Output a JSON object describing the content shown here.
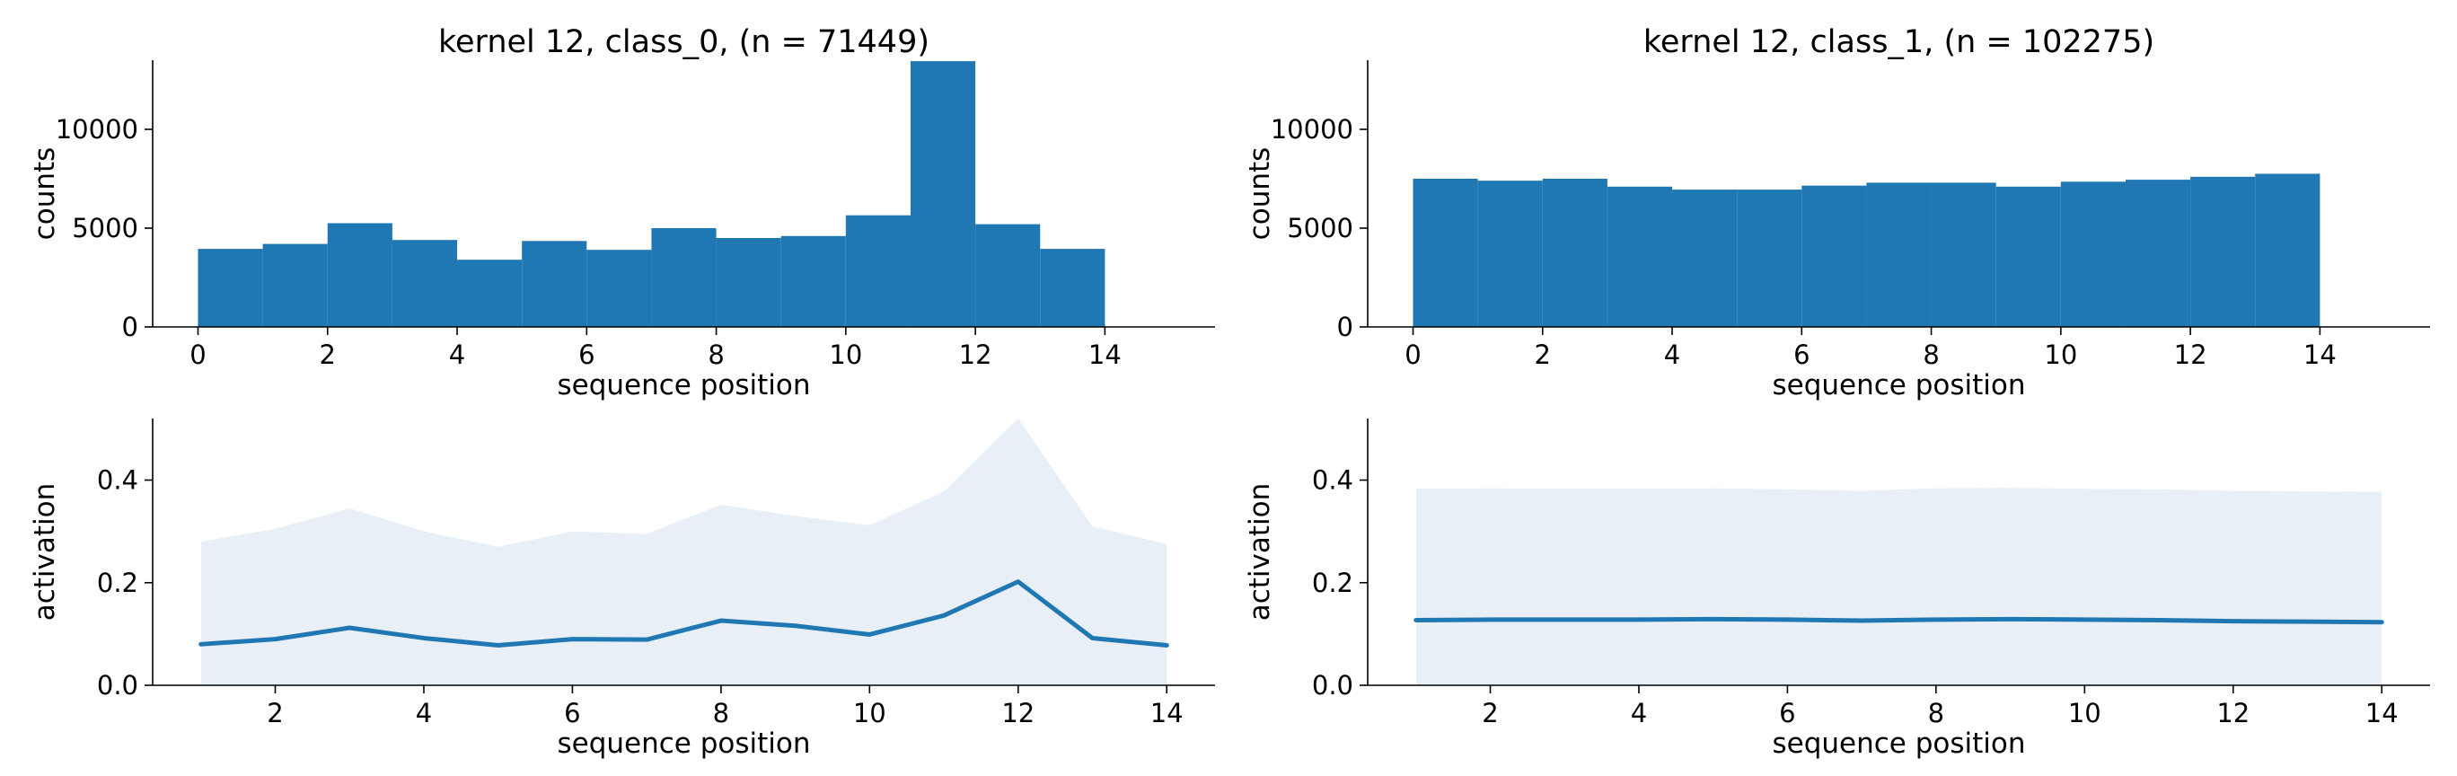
{
  "colors": {
    "bar": "#1f77b4",
    "line": "#1f77b4",
    "band": "#e8eff7",
    "axis": "#000000"
  },
  "chart_data": [
    {
      "type": "bar",
      "title": "kernel 12, class_0, (n = 71449)",
      "xlabel": "sequence position",
      "ylabel": "counts",
      "xlim": [
        -0.7,
        15.7
      ],
      "ylim": [
        0,
        13500
      ],
      "xticks": [
        0,
        2,
        4,
        6,
        8,
        10,
        12,
        14
      ],
      "yticks": [
        0,
        5000,
        10000
      ],
      "bin_edges": [
        0,
        1,
        2,
        3,
        4,
        5,
        6,
        7,
        8,
        9,
        10,
        11,
        12,
        13,
        14
      ],
      "values": [
        3950,
        4200,
        5250,
        4400,
        3400,
        4350,
        3900,
        5000,
        4500,
        4600,
        5650,
        13450,
        5200,
        3950
      ],
      "grid": false
    },
    {
      "type": "bar",
      "title": "kernel 12, class_1, (n = 102275)",
      "xlabel": "sequence position",
      "ylabel": "counts",
      "xlim": [
        -0.7,
        15.7
      ],
      "ylim": [
        0,
        13500
      ],
      "xticks": [
        0,
        2,
        4,
        6,
        8,
        10,
        12,
        14
      ],
      "yticks": [
        0,
        5000,
        10000
      ],
      "bin_edges": [
        0,
        1,
        2,
        3,
        4,
        5,
        6,
        7,
        8,
        9,
        10,
        11,
        12,
        13,
        14
      ],
      "values": [
        7500,
        7400,
        7500,
        7100,
        6950,
        6950,
        7150,
        7300,
        7300,
        7100,
        7350,
        7450,
        7600,
        7750
      ],
      "grid": false
    },
    {
      "type": "line",
      "title": "",
      "xlabel": "sequence position",
      "ylabel": "activation",
      "xlim": [
        0.35,
        14.65
      ],
      "ylim": [
        0,
        0.52
      ],
      "xticks": [
        2,
        4,
        6,
        8,
        10,
        12,
        14
      ],
      "yticks": [
        0.0,
        0.2,
        0.4
      ],
      "ytick_labels": [
        "0.0",
        "0.2",
        "0.4"
      ],
      "x": [
        1,
        2,
        3,
        4,
        5,
        6,
        7,
        8,
        9,
        10,
        11,
        12,
        13,
        14
      ],
      "mean": [
        0.08,
        0.09,
        0.112,
        0.092,
        0.078,
        0.09,
        0.089,
        0.126,
        0.116,
        0.099,
        0.136,
        0.202,
        0.092,
        0.078
      ],
      "band_upper": [
        0.28,
        0.305,
        0.345,
        0.3,
        0.27,
        0.3,
        0.295,
        0.352,
        0.33,
        0.312,
        0.378,
        0.52,
        0.31,
        0.275
      ],
      "band_lower": [
        0,
        0,
        0,
        0,
        0,
        0,
        0,
        0,
        0,
        0,
        0,
        0,
        0,
        0
      ],
      "grid": false
    },
    {
      "type": "line",
      "title": "",
      "xlabel": "sequence position",
      "ylabel": "activation",
      "xlim": [
        0.35,
        14.65
      ],
      "ylim": [
        0,
        0.52
      ],
      "xticks": [
        2,
        4,
        6,
        8,
        10,
        12,
        14
      ],
      "yticks": [
        0.0,
        0.2,
        0.4
      ],
      "ytick_labels": [
        "0.0",
        "0.2",
        "0.4"
      ],
      "x": [
        1,
        2,
        3,
        4,
        5,
        6,
        7,
        8,
        9,
        10,
        11,
        12,
        13,
        14
      ],
      "mean": [
        0.127,
        0.128,
        0.128,
        0.128,
        0.129,
        0.128,
        0.126,
        0.128,
        0.129,
        0.128,
        0.127,
        0.125,
        0.124,
        0.123
      ],
      "band_upper": [
        0.383,
        0.384,
        0.383,
        0.383,
        0.384,
        0.382,
        0.379,
        0.384,
        0.385,
        0.383,
        0.382,
        0.379,
        0.378,
        0.377
      ],
      "band_lower": [
        0,
        0,
        0,
        0,
        0,
        0,
        0,
        0,
        0,
        0,
        0,
        0,
        0,
        0
      ],
      "grid": false
    }
  ]
}
